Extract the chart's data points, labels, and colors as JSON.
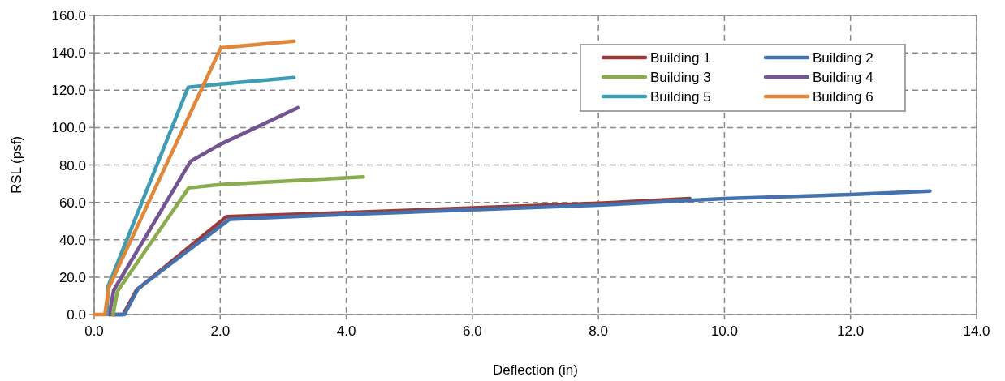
{
  "chart_data": {
    "type": "line",
    "xlabel": "Deflection (in)",
    "ylabel": "RSL (psf)",
    "xlim": [
      0,
      14
    ],
    "ylim": [
      0,
      160
    ],
    "xticks": [
      {
        "value": 0,
        "label": "0.0"
      },
      {
        "value": 2,
        "label": "2.0"
      },
      {
        "value": 4,
        "label": "4.0"
      },
      {
        "value": 6,
        "label": "6.0"
      },
      {
        "value": 8,
        "label": "8.0"
      },
      {
        "value": 10,
        "label": "10.0"
      },
      {
        "value": 12,
        "label": "12.0"
      },
      {
        "value": 14,
        "label": "14.0"
      }
    ],
    "yticks": [
      {
        "value": 0,
        "label": "0.0"
      },
      {
        "value": 20,
        "label": "20.0"
      },
      {
        "value": 40,
        "label": "40.0"
      },
      {
        "value": 60,
        "label": "60.0"
      },
      {
        "value": 80,
        "label": "80.0"
      },
      {
        "value": 100,
        "label": "100.0"
      },
      {
        "value": 120,
        "label": "120.0"
      },
      {
        "value": 140,
        "label": "140.0"
      },
      {
        "value": 160,
        "label": "160.0"
      }
    ],
    "grid": true,
    "legend": "top right",
    "marker": "none",
    "line_style": "solid",
    "series": [
      {
        "name": "Building 1",
        "color": "#9b3a3a",
        "x": [
          0.24,
          0.46,
          0.67,
          2.1,
          4.0,
          6.0,
          8.0,
          9.45
        ],
        "values": [
          0,
          0,
          13,
          52.4,
          54.5,
          57,
          59.5,
          62
        ]
      },
      {
        "name": "Building 2",
        "color": "#4472b0",
        "x": [
          0.3,
          0.48,
          0.7,
          2.15,
          4.0,
          6.0,
          8.0,
          10.0,
          12.0,
          13.26
        ],
        "values": [
          0,
          0,
          14,
          51,
          53.5,
          56,
          58.5,
          62,
          64.2,
          66
        ]
      },
      {
        "name": "Building 3",
        "color": "#8aac4c",
        "x": [
          0.3,
          0.37,
          1.5,
          2.0,
          4.27
        ],
        "values": [
          0,
          12.5,
          67.7,
          69.5,
          73.6
        ]
      },
      {
        "name": "Building 4",
        "color": "#735592",
        "x": [
          0.24,
          0.31,
          1.53,
          2.0,
          3.23
        ],
        "values": [
          0,
          13,
          82,
          91,
          110.6
        ]
      },
      {
        "name": "Building 5",
        "color": "#3f9db3",
        "x": [
          0.2,
          0.22,
          1.49,
          2.0,
          3.17
        ],
        "values": [
          0,
          15,
          121.5,
          123.3,
          126.7
        ]
      },
      {
        "name": "Building 6",
        "color": "#e0873a",
        "x": [
          0,
          0.17,
          0.23,
          2.01,
          3.17
        ],
        "values": [
          0,
          0,
          14.3,
          142.7,
          146.2
        ]
      }
    ]
  }
}
